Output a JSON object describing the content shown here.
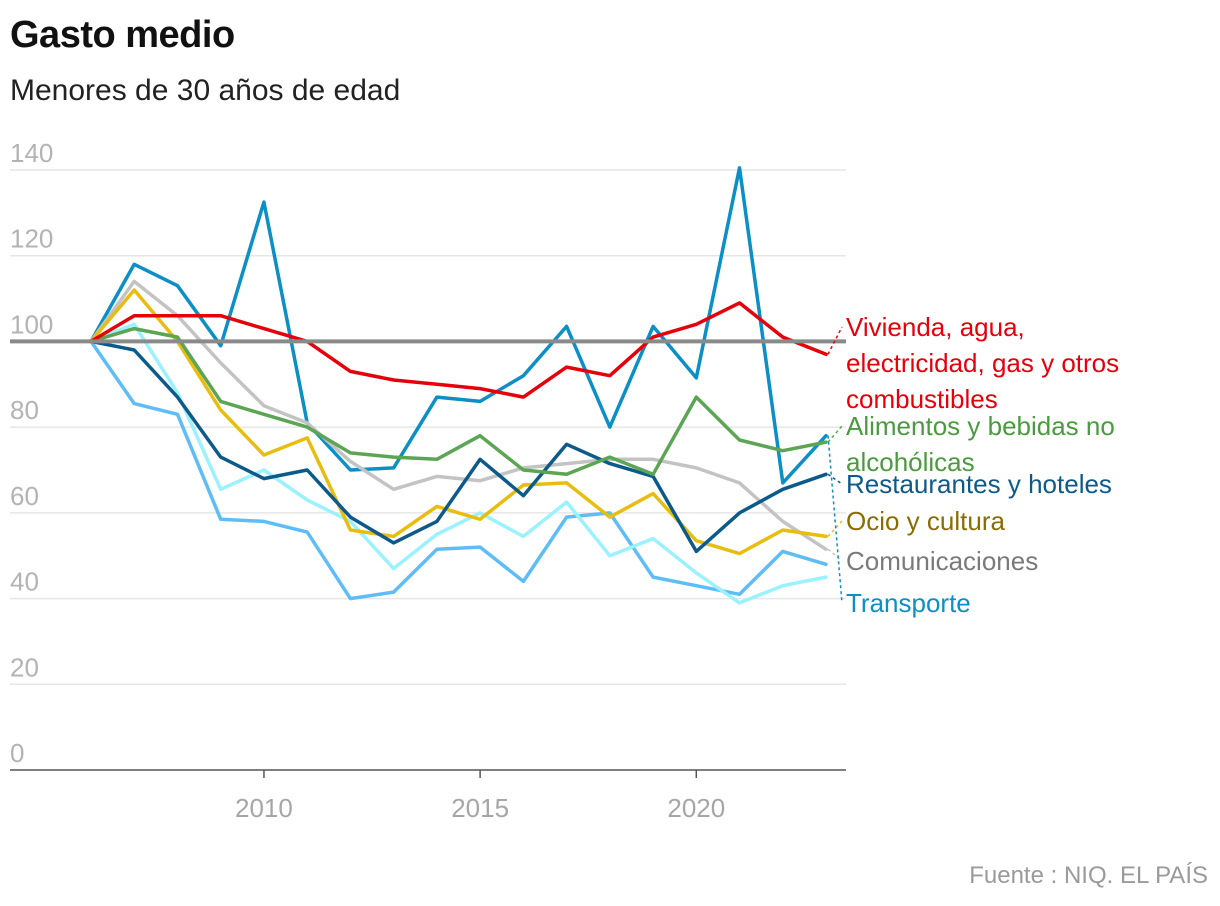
{
  "header": {
    "title": "Gasto medio",
    "subtitle": "Menores de 30 años de edad",
    "source": "Fuente : NIQ. EL PAÍS"
  },
  "chart_data": {
    "type": "line",
    "title": "Gasto medio",
    "subtitle": "Menores de 30 años de edad",
    "xlabel": "",
    "ylabel": "",
    "x": [
      2006,
      2007,
      2008,
      2009,
      2010,
      2011,
      2012,
      2013,
      2014,
      2015,
      2016,
      2017,
      2018,
      2019,
      2020,
      2021,
      2022,
      2023
    ],
    "xlim": [
      2006,
      2023
    ],
    "ylim": [
      0,
      140
    ],
    "yticks": [
      0,
      20,
      40,
      60,
      80,
      100,
      120,
      140
    ],
    "xticks": [
      2010,
      2015,
      2020
    ],
    "reference_line": 100,
    "grid": true,
    "legend": "direct labels at right end of lines",
    "series": [
      {
        "name": "Vivienda, agua, electricidad, gas y otros combustibles",
        "color": "#e6000a",
        "label_lines": [
          "Vivienda, agua,",
          "electricidad, gas y otros",
          "combustibles"
        ],
        "values": [
          100,
          106,
          106,
          106,
          103,
          100,
          93,
          91,
          90,
          89,
          87,
          94,
          92,
          101,
          104,
          109,
          101,
          97
        ]
      },
      {
        "name": "Alimentos y bebidas no alcohólicas",
        "color": "#5ba554",
        "label_lines": [
          "Alimentos y bebidas no",
          "alcohólicas"
        ],
        "values": [
          100,
          103,
          101,
          86,
          83,
          80,
          74,
          73,
          72.5,
          78,
          70,
          69,
          73,
          69,
          87,
          77,
          74.5,
          76.5
        ]
      },
      {
        "name": "Restaurantes y hoteles",
        "color": "#0d5a8a",
        "label_lines": [
          "Restaurantes y hoteles"
        ],
        "values": [
          100,
          98,
          87,
          73,
          68,
          70,
          59,
          53,
          58,
          72.5,
          64,
          76,
          71.5,
          68.5,
          51,
          60,
          65.5,
          69
        ]
      },
      {
        "name": "Ocio y cultura",
        "color": "#e8bd10",
        "label_lines": [
          "Ocio y cultura"
        ],
        "values": [
          100,
          112,
          100,
          84,
          73.5,
          77.5,
          56,
          54.5,
          61.5,
          58.5,
          66.5,
          67,
          59,
          64.5,
          53.5,
          50.5,
          56,
          54.5
        ]
      },
      {
        "name": "Comunicaciones",
        "color": "#c3c3c3",
        "label_lines": [
          "Comunicaciones"
        ],
        "values": [
          100,
          114,
          106,
          95,
          85,
          81,
          72,
          65.5,
          68.5,
          67.5,
          70.5,
          71.5,
          72.5,
          72.5,
          70.5,
          67,
          58,
          51.5
        ]
      },
      {
        "name": "Transporte",
        "color": "#0b8fc6",
        "label_lines": [
          "Transporte"
        ],
        "values": [
          100,
          118,
          113,
          99,
          132.5,
          81,
          70,
          70.5,
          87,
          86,
          92,
          103.5,
          80,
          103.5,
          91.5,
          140.5,
          67,
          78
        ]
      },
      {
        "name": "",
        "color": "#9bf2ff",
        "label_lines": [],
        "values": [
          100,
          104,
          88,
          65.5,
          70,
          63,
          58,
          47,
          55,
          60,
          54.5,
          62.5,
          50,
          54,
          46,
          39,
          43,
          45
        ]
      },
      {
        "name": "",
        "color": "#5ebdf7",
        "label_lines": [],
        "values": [
          100,
          85.5,
          83,
          58.5,
          58,
          55.5,
          40,
          41.5,
          51.5,
          52,
          44,
          59,
          60,
          45,
          43,
          41,
          51,
          48
        ]
      }
    ]
  }
}
